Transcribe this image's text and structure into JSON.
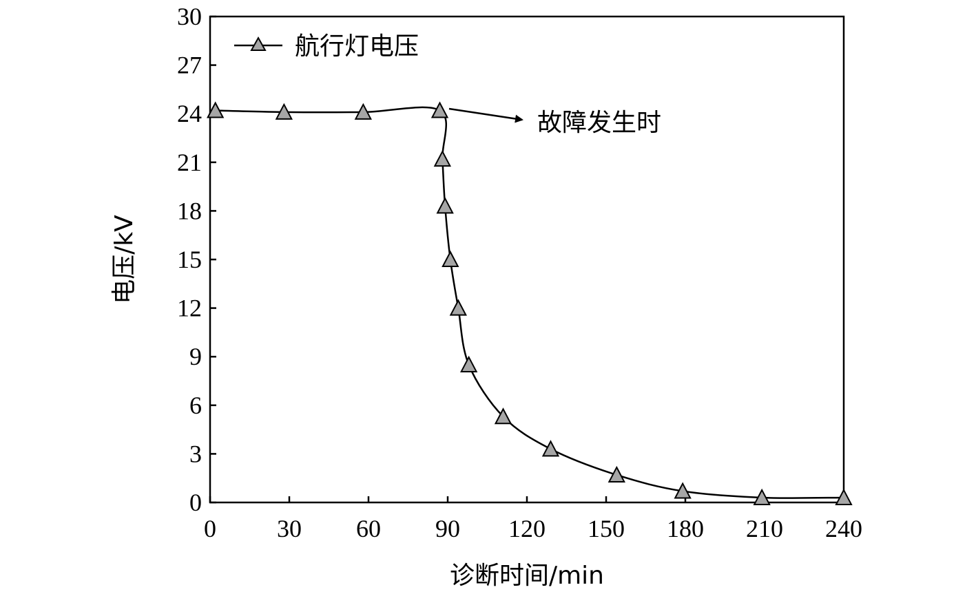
{
  "chart_data": {
    "type": "line",
    "title": "",
    "xlabel": "诊断时间/min",
    "ylabel": "电压/kV",
    "xlim": [
      0,
      240
    ],
    "ylim": [
      0,
      30
    ],
    "x_ticks": [
      0,
      30,
      60,
      90,
      120,
      150,
      180,
      210,
      240
    ],
    "y_ticks": [
      0,
      3,
      6,
      9,
      12,
      15,
      18,
      21,
      24,
      27,
      30
    ],
    "grid": false,
    "legend": {
      "position": "top-left"
    },
    "series": [
      {
        "name": "航行灯电压",
        "marker": "triangle",
        "marker_color": "#a6a6a6",
        "line_color": "#000000",
        "x": [
          2,
          28,
          58,
          87,
          88,
          89,
          91,
          94,
          98,
          111,
          129,
          154,
          179,
          209,
          240
        ],
        "y": [
          24.2,
          24.1,
          24.1,
          24.2,
          21.2,
          18.3,
          15.0,
          12.0,
          8.5,
          5.3,
          3.3,
          1.7,
          0.7,
          0.3,
          0.3
        ]
      }
    ],
    "annotations": [
      {
        "text": "故障发生时",
        "points_to": {
          "x": 87,
          "y": 24.2
        }
      }
    ]
  }
}
